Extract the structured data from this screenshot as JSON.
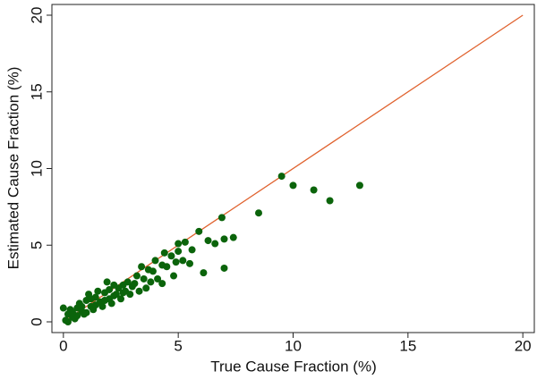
{
  "chart_data": {
    "type": "scatter",
    "xlabel": "True Cause Fraction (%)",
    "ylabel": "Estimated Cause Fraction (%)",
    "x": [
      9.5,
      10,
      10.9,
      11.6,
      12.9,
      8.5,
      6.9,
      7.0,
      7.4,
      6.1,
      5.9,
      6.3,
      7.0,
      6.6,
      5.6,
      5.3,
      4.4,
      4.7,
      5.2,
      5.0,
      4.3,
      4.0,
      4.8,
      4.3,
      3.7,
      3.5,
      3.2,
      3.0,
      2.8,
      2.6,
      2.4,
      2.2,
      2.0,
      1.8,
      1.6,
      1.4,
      1.2,
      1.0,
      0.8,
      0.6,
      0.4,
      0.2,
      0.1,
      0.0,
      0.3,
      0.5,
      0.7,
      0.9,
      1.1,
      1.3,
      1.5,
      1.7,
      1.9,
      2.1,
      2.3,
      2.5,
      2.7,
      2.9,
      3.1,
      3.3,
      3.6,
      3.9,
      4.1,
      4.5,
      0.2,
      0.6,
      1.0,
      1.4,
      1.8,
      2.2,
      2.6,
      3.4,
      3.8,
      1.2,
      0.4,
      0.8,
      2.0,
      5.5,
      4.9,
      5.0
    ],
    "values": [
      9.5,
      8.9,
      8.6,
      7.9,
      8.9,
      7.1,
      6.8,
      3.5,
      5.5,
      3.2,
      5.9,
      5.3,
      5.4,
      5.1,
      4.7,
      5.2,
      4.5,
      4.3,
      4.0,
      4.6,
      3.7,
      4.0,
      3.0,
      2.5,
      3.4,
      2.8,
      3.0,
      2.3,
      2.6,
      1.9,
      2.2,
      2.4,
      1.5,
      1.9,
      1.3,
      1.6,
      1.0,
      1.4,
      0.7,
      0.9,
      0.3,
      0.5,
      0.1,
      0.9,
      0.8,
      0.2,
      1.2,
      0.5,
      1.8,
      0.8,
      2.0,
      1.0,
      2.6,
      1.2,
      1.8,
      1.5,
      2.0,
      1.8,
      2.5,
      2.0,
      2.2,
      3.3,
      2.8,
      3.6,
      0.0,
      0.4,
      0.6,
      1.1,
      1.4,
      1.7,
      2.4,
      3.6,
      2.6,
      1.5,
      0.6,
      1.0,
      2.1,
      3.8,
      3.9,
      5.1
    ],
    "color": "#0b640b",
    "reference_line": {
      "x": [
        0,
        20
      ],
      "y": [
        0,
        20
      ],
      "color": "#e0622e"
    },
    "xlim": [
      -0.5,
      20.5
    ],
    "ylim": [
      -0.7,
      20.7
    ],
    "xticks": [
      0,
      5,
      10,
      15,
      20
    ],
    "yticks": [
      0,
      5,
      10,
      15,
      20
    ]
  }
}
